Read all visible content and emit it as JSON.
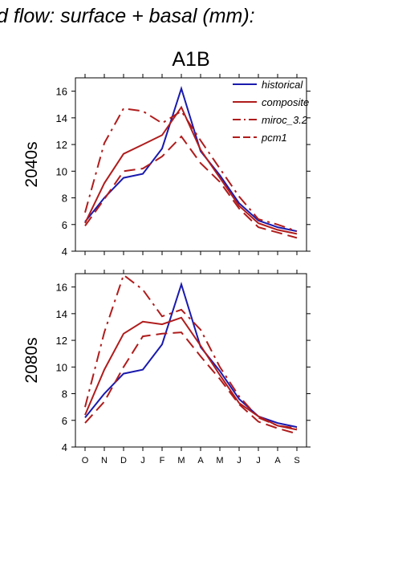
{
  "figure": {
    "title": "d flow: surface + basal (mm):",
    "scenario": "A1B"
  },
  "chart_data": [
    {
      "type": "line",
      "panel_label": "2040s",
      "categories": [
        "O",
        "N",
        "D",
        "J",
        "F",
        "M",
        "A",
        "M",
        "J",
        "J",
        "A",
        "S"
      ],
      "ylim": [
        4,
        17
      ],
      "yticks": [
        4,
        6,
        8,
        10,
        12,
        14,
        16
      ],
      "grid": false,
      "legend_position": "top-right",
      "series": [
        {
          "name": "historical",
          "color": "#1a1aae",
          "dash": "solid",
          "values": [
            6.2,
            8.0,
            9.5,
            9.8,
            11.7,
            16.2,
            11.5,
            9.7,
            7.6,
            6.3,
            5.8,
            5.5
          ]
        },
        {
          "name": "composite",
          "color": "#b01c1c",
          "dash": "solid",
          "values": [
            6.1,
            9.1,
            11.3,
            12.0,
            12.7,
            14.8,
            11.6,
            9.5,
            7.4,
            6.1,
            5.6,
            5.3
          ]
        },
        {
          "name": "miroc_3.2",
          "color": "#b01c1c",
          "dash": "dashdot",
          "values": [
            6.9,
            12.1,
            14.7,
            14.5,
            13.6,
            14.5,
            12.3,
            10.2,
            8.1,
            6.4,
            6.0,
            5.5
          ]
        },
        {
          "name": "pcm1",
          "color": "#b01c1c",
          "dash": "dash",
          "values": [
            5.9,
            7.9,
            10.0,
            10.2,
            11.1,
            12.6,
            10.6,
            9.2,
            7.2,
            5.8,
            5.4,
            5.0
          ]
        }
      ]
    },
    {
      "type": "line",
      "panel_label": "2080s",
      "categories": [
        "O",
        "N",
        "D",
        "J",
        "F",
        "M",
        "A",
        "M",
        "J",
        "J",
        "A",
        "S"
      ],
      "ylim": [
        4,
        17
      ],
      "yticks": [
        4,
        6,
        8,
        10,
        12,
        14,
        16
      ],
      "grid": false,
      "series": [
        {
          "name": "historical",
          "color": "#1a1aae",
          "dash": "solid",
          "values": [
            6.2,
            8.0,
            9.5,
            9.8,
            11.7,
            16.2,
            11.5,
            9.7,
            7.6,
            6.3,
            5.8,
            5.5
          ]
        },
        {
          "name": "composite",
          "color": "#b01c1c",
          "dash": "solid",
          "values": [
            6.4,
            9.8,
            12.5,
            13.4,
            13.2,
            13.7,
            11.6,
            9.4,
            7.3,
            6.3,
            5.6,
            5.3
          ]
        },
        {
          "name": "miroc_3.2",
          "color": "#b01c1c",
          "dash": "dashdot",
          "values": [
            7.0,
            12.6,
            16.9,
            15.8,
            13.8,
            14.3,
            12.8,
            10.0,
            7.8,
            6.2,
            5.6,
            5.4
          ]
        },
        {
          "name": "pcm1",
          "color": "#b01c1c",
          "dash": "dash",
          "values": [
            5.8,
            7.4,
            10.0,
            12.3,
            12.5,
            12.6,
            10.8,
            9.1,
            7.2,
            5.9,
            5.4,
            5.0
          ]
        }
      ]
    }
  ]
}
